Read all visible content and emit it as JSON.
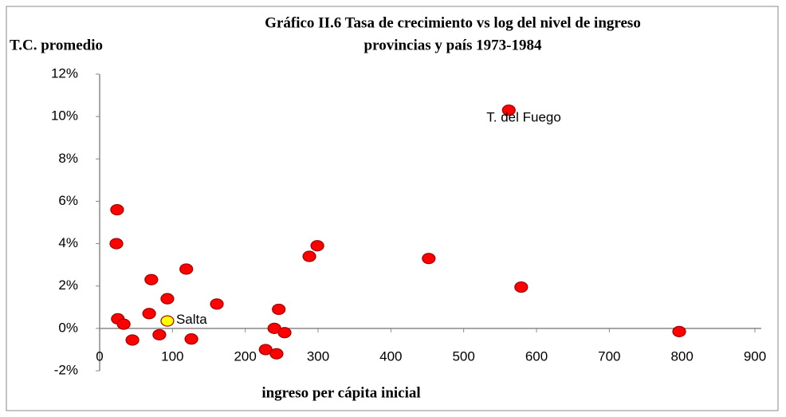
{
  "chart_data": {
    "type": "scatter",
    "title": [
      "Gráfico II.6 Tasa de crecimiento vs log del nivel de ingreso",
      "provincias y país 1973-1984"
    ],
    "ylabel": "T.C. promedio",
    "xlabel": "ingreso per cápita inicial",
    "xlim": [
      0,
      900
    ],
    "xticks": [
      0,
      100,
      200,
      300,
      400,
      500,
      600,
      700,
      800,
      900
    ],
    "ylim": [
      -2,
      12
    ],
    "yticks": [
      {
        "value": -2,
        "label": "-2%"
      },
      {
        "value": 0,
        "label": "0%"
      },
      {
        "value": 2,
        "label": "2%"
      },
      {
        "value": 4,
        "label": "4%"
      },
      {
        "value": 6,
        "label": "6%"
      },
      {
        "value": 8,
        "label": "8%"
      },
      {
        "value": 10,
        "label": "10%"
      },
      {
        "value": 12,
        "label": "12%"
      }
    ],
    "series": [
      {
        "color": "#ff0000",
        "x": [
          24,
          23,
          25,
          33,
          45,
          68,
          71,
          82,
          93,
          119,
          126,
          161,
          228,
          240,
          246,
          243,
          254,
          288,
          299,
          452,
          562,
          579,
          796
        ],
        "values": [
          5.6,
          4.0,
          0.45,
          0.2,
          -0.55,
          0.7,
          2.3,
          -0.3,
          1.4,
          2.8,
          -0.5,
          1.15,
          -1.0,
          0.0,
          0.9,
          -1.2,
          -0.2,
          3.4,
          3.9,
          3.3,
          10.3,
          1.95,
          -0.15
        ]
      },
      {
        "name": "Salta",
        "color": "#ffff00",
        "x": [
          93
        ],
        "values": [
          0.35
        ]
      }
    ],
    "annotations": [
      {
        "text": "T. del Fuego",
        "x": 562,
        "y": 10.3
      }
    ]
  }
}
